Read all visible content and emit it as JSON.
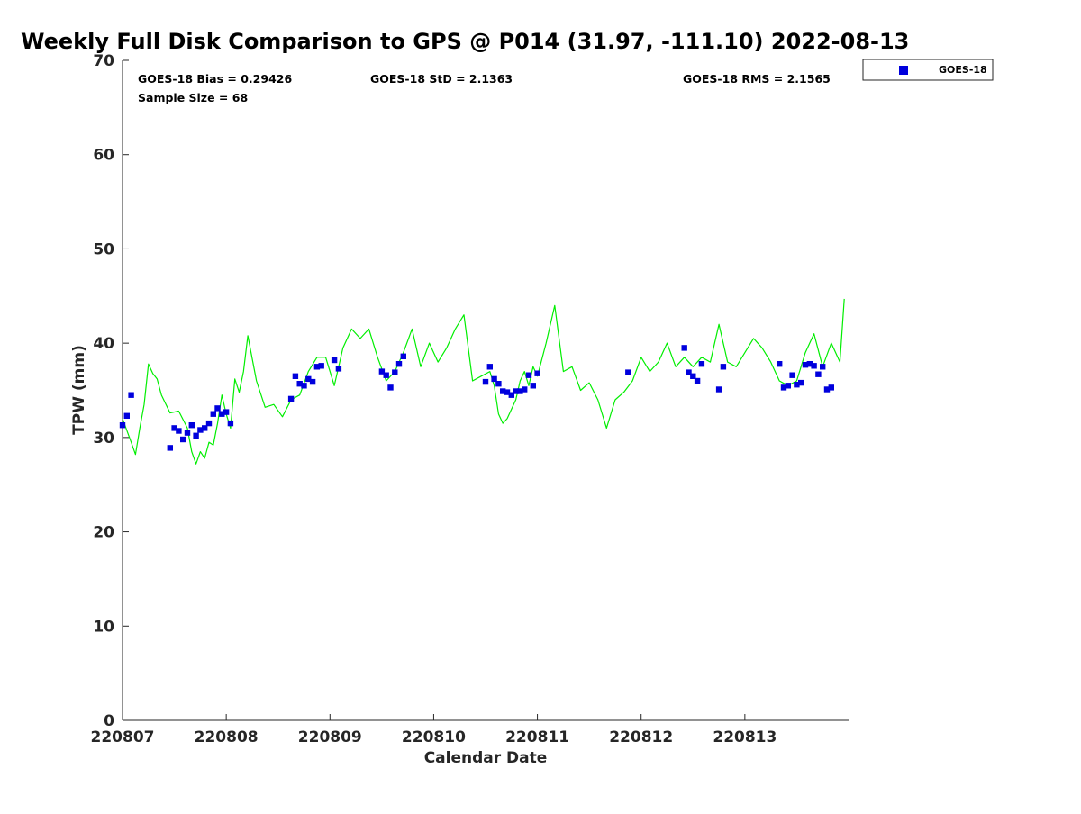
{
  "chart_data": {
    "type": "line",
    "title": "Weekly Full Disk Comparison to GPS @ P014 (31.97, -111.10) 2022-08-13",
    "xlabel": "Calendar Date",
    "ylabel": "TPW (mm)",
    "ylim": [
      0,
      70
    ],
    "xlim": [
      "2022-08-07 00:00",
      "2022-08-14 00:00"
    ],
    "x_ticks": [
      "220807",
      "220808",
      "220809",
      "220810",
      "220811",
      "220812",
      "220813"
    ],
    "y_ticks": [
      0,
      10,
      20,
      30,
      40,
      50,
      60,
      70
    ],
    "grid": false,
    "legend_position": "top-right",
    "stats": {
      "bias": "GOES-18 Bias = 0.29426",
      "std": "GOES-18 StD = 2.1363",
      "rms": "GOES-18 RMS = 2.1565",
      "sample_size": "Sample Size = 68"
    },
    "colors": {
      "gps_line": "#00ee00",
      "goes_marker": "#0000dd"
    },
    "series": [
      {
        "name": "",
        "kind": "line",
        "x": [
          "2022-08-07 00:00",
          "2022-08-07 02:00",
          "2022-08-07 03:00",
          "2022-08-07 04:00",
          "2022-08-07 05:00",
          "2022-08-07 06:00",
          "2022-08-07 07:00",
          "2022-08-07 08:00",
          "2022-08-07 09:00",
          "2022-08-07 11:00",
          "2022-08-07 13:00",
          "2022-08-07 15:00",
          "2022-08-07 16:00",
          "2022-08-07 17:00",
          "2022-08-07 18:00",
          "2022-08-07 19:00",
          "2022-08-07 20:00",
          "2022-08-07 21:00",
          "2022-08-07 22:00",
          "2022-08-07 23:00",
          "2022-08-08 00:00",
          "2022-08-08 01:00",
          "2022-08-08 02:00",
          "2022-08-08 03:00",
          "2022-08-08 04:00",
          "2022-08-08 05:00",
          "2022-08-08 07:00",
          "2022-08-08 09:00",
          "2022-08-08 11:00",
          "2022-08-08 13:00",
          "2022-08-08 15:00",
          "2022-08-08 17:00",
          "2022-08-08 19:00",
          "2022-08-08 21:00",
          "2022-08-08 23:00",
          "2022-08-09 01:00",
          "2022-08-09 03:00",
          "2022-08-09 05:00",
          "2022-08-09 07:00",
          "2022-08-09 09:00",
          "2022-08-09 11:00",
          "2022-08-09 13:00",
          "2022-08-09 15:00",
          "2022-08-09 17:00",
          "2022-08-09 19:00",
          "2022-08-09 21:00",
          "2022-08-09 23:00",
          "2022-08-10 01:00",
          "2022-08-10 03:00",
          "2022-08-10 05:00",
          "2022-08-10 07:00",
          "2022-08-10 09:00",
          "2022-08-10 11:00",
          "2022-08-10 13:00",
          "2022-08-10 14:00",
          "2022-08-10 15:00",
          "2022-08-10 16:00",
          "2022-08-10 17:00",
          "2022-08-10 18:00",
          "2022-08-10 19:00",
          "2022-08-10 20:00",
          "2022-08-10 21:00",
          "2022-08-10 22:00",
          "2022-08-10 23:00",
          "2022-08-11 00:00",
          "2022-08-11 02:00",
          "2022-08-11 04:00",
          "2022-08-11 06:00",
          "2022-08-11 08:00",
          "2022-08-11 10:00",
          "2022-08-11 12:00",
          "2022-08-11 14:00",
          "2022-08-11 16:00",
          "2022-08-11 18:00",
          "2022-08-11 20:00",
          "2022-08-11 22:00",
          "2022-08-12 00:00",
          "2022-08-12 02:00",
          "2022-08-12 04:00",
          "2022-08-12 06:00",
          "2022-08-12 08:00",
          "2022-08-12 10:00",
          "2022-08-12 12:00",
          "2022-08-12 14:00",
          "2022-08-12 16:00",
          "2022-08-12 18:00",
          "2022-08-12 20:00",
          "2022-08-12 22:00",
          "2022-08-13 00:00",
          "2022-08-13 02:00",
          "2022-08-13 04:00",
          "2022-08-13 06:00",
          "2022-08-13 08:00",
          "2022-08-13 10:00",
          "2022-08-13 12:00",
          "2022-08-13 14:00",
          "2022-08-13 16:00",
          "2022-08-13 18:00",
          "2022-08-13 20:00",
          "2022-08-13 22:00",
          "2022-08-13 23:00"
        ],
        "values": [
          32.0,
          29.5,
          28.2,
          31.0,
          33.5,
          37.8,
          36.8,
          36.2,
          34.5,
          32.6,
          32.8,
          31.0,
          28.5,
          27.2,
          28.5,
          27.8,
          29.5,
          29.2,
          31.5,
          34.5,
          32.5,
          31.0,
          36.2,
          34.8,
          37.0,
          40.8,
          36.0,
          33.2,
          33.5,
          32.2,
          34.0,
          34.5,
          37.0,
          38.5,
          38.5,
          35.5,
          39.5,
          41.5,
          40.5,
          41.5,
          38.5,
          36.0,
          37.0,
          39.0,
          41.5,
          37.5,
          40.0,
          38.0,
          39.5,
          41.5,
          43.0,
          36.0,
          36.5,
          37.0,
          35.5,
          32.5,
          31.5,
          32.0,
          33.0,
          34.0,
          36.0,
          37.0,
          35.5,
          37.5,
          36.5,
          40.0,
          44.0,
          37.0,
          37.5,
          35.0,
          35.8,
          34.0,
          31.0,
          34.0,
          34.8,
          36.0,
          38.5,
          37.0,
          38.0,
          40.0,
          37.5,
          38.5,
          37.5,
          38.5,
          38.0,
          42.0,
          38.0,
          37.5,
          39.0,
          40.5,
          39.5,
          38.0,
          36.0,
          35.5,
          36.0,
          39.0,
          41.0,
          37.5,
          40.0,
          38.0,
          44.7
        ]
      },
      {
        "name": "GOES-18",
        "kind": "scatter",
        "x": [
          "2022-08-07 00:00",
          "2022-08-07 01:00",
          "2022-08-07 02:00",
          "2022-08-07 11:00",
          "2022-08-07 12:00",
          "2022-08-07 13:00",
          "2022-08-07 14:00",
          "2022-08-07 15:00",
          "2022-08-07 16:00",
          "2022-08-07 17:00",
          "2022-08-07 18:00",
          "2022-08-07 19:00",
          "2022-08-07 20:00",
          "2022-08-07 21:00",
          "2022-08-07 22:00",
          "2022-08-07 23:00",
          "2022-08-08 00:00",
          "2022-08-08 01:00",
          "2022-08-08 15:00",
          "2022-08-08 16:00",
          "2022-08-08 17:00",
          "2022-08-08 18:00",
          "2022-08-08 19:00",
          "2022-08-08 20:00",
          "2022-08-08 21:00",
          "2022-08-08 22:00",
          "2022-08-09 01:00",
          "2022-08-09 02:00",
          "2022-08-09 12:00",
          "2022-08-09 13:00",
          "2022-08-09 14:00",
          "2022-08-09 15:00",
          "2022-08-09 16:00",
          "2022-08-09 17:00",
          "2022-08-10 12:00",
          "2022-08-10 13:00",
          "2022-08-10 14:00",
          "2022-08-10 15:00",
          "2022-08-10 16:00",
          "2022-08-10 17:00",
          "2022-08-10 18:00",
          "2022-08-10 19:00",
          "2022-08-10 20:00",
          "2022-08-10 21:00",
          "2022-08-10 22:00",
          "2022-08-10 23:00",
          "2022-08-11 00:00",
          "2022-08-11 21:00",
          "2022-08-12 10:00",
          "2022-08-12 11:00",
          "2022-08-12 12:00",
          "2022-08-12 13:00",
          "2022-08-12 14:00",
          "2022-08-12 18:00",
          "2022-08-12 19:00",
          "2022-08-13 08:00",
          "2022-08-13 09:00",
          "2022-08-13 10:00",
          "2022-08-13 11:00",
          "2022-08-13 12:00",
          "2022-08-13 13:00",
          "2022-08-13 14:00",
          "2022-08-13 15:00",
          "2022-08-13 16:00",
          "2022-08-13 17:00",
          "2022-08-13 18:00",
          "2022-08-13 19:00",
          "2022-08-13 20:00"
        ],
        "values": [
          31.3,
          32.3,
          34.5,
          28.9,
          31.0,
          30.7,
          29.8,
          30.5,
          31.3,
          30.2,
          30.8,
          31.0,
          31.5,
          32.5,
          33.1,
          32.5,
          32.7,
          31.5,
          34.1,
          36.5,
          35.7,
          35.5,
          36.2,
          35.9,
          37.5,
          37.6,
          38.2,
          37.3,
          37.0,
          36.6,
          35.3,
          36.9,
          37.8,
          38.6,
          35.9,
          37.5,
          36.2,
          35.7,
          34.9,
          34.8,
          34.5,
          34.9,
          34.9,
          35.1,
          36.6,
          35.5,
          36.8,
          36.9,
          39.5,
          36.9,
          36.5,
          36.0,
          37.8,
          35.1,
          37.5,
          37.8,
          35.3,
          35.5,
          36.6,
          35.6,
          35.8,
          37.7,
          37.8,
          37.6,
          36.7,
          37.5,
          35.1,
          35.3
        ]
      }
    ]
  }
}
